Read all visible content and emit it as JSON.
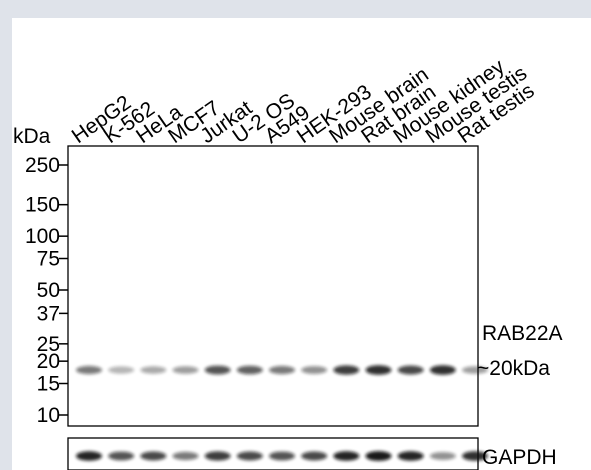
{
  "blot": {
    "unit_label": "kDa",
    "lanes": [
      "HepG2",
      "K-562",
      "HeLa",
      "MCF7",
      "Jurkat",
      "U-2 OS",
      "A549",
      "HEK-293",
      "Mouse brain",
      "Rat brain",
      "Mouse kidney",
      "Mouse testis",
      "Rat testis"
    ],
    "markers": [
      "250",
      "150",
      "100",
      "75",
      "50",
      "37",
      "25",
      "20",
      "15",
      "10"
    ],
    "marker_kda": [
      250,
      150,
      100,
      75,
      50,
      37,
      25,
      20,
      15,
      10
    ],
    "target_name": "RAB22A",
    "target_size": "~20kDa",
    "loading_control": "GAPDH",
    "target_band_intensity": [
      0.55,
      0.3,
      0.35,
      0.4,
      0.7,
      0.65,
      0.55,
      0.45,
      0.8,
      0.85,
      0.75,
      0.85,
      0.4
    ],
    "control_band_intensity": [
      0.9,
      0.7,
      0.75,
      0.55,
      0.8,
      0.75,
      0.7,
      0.75,
      0.9,
      0.95,
      0.9,
      0.45,
      0.85
    ],
    "colors": {
      "page_background": "#dfe3ea",
      "panel_border": "#000000",
      "band": "#111111"
    }
  }
}
